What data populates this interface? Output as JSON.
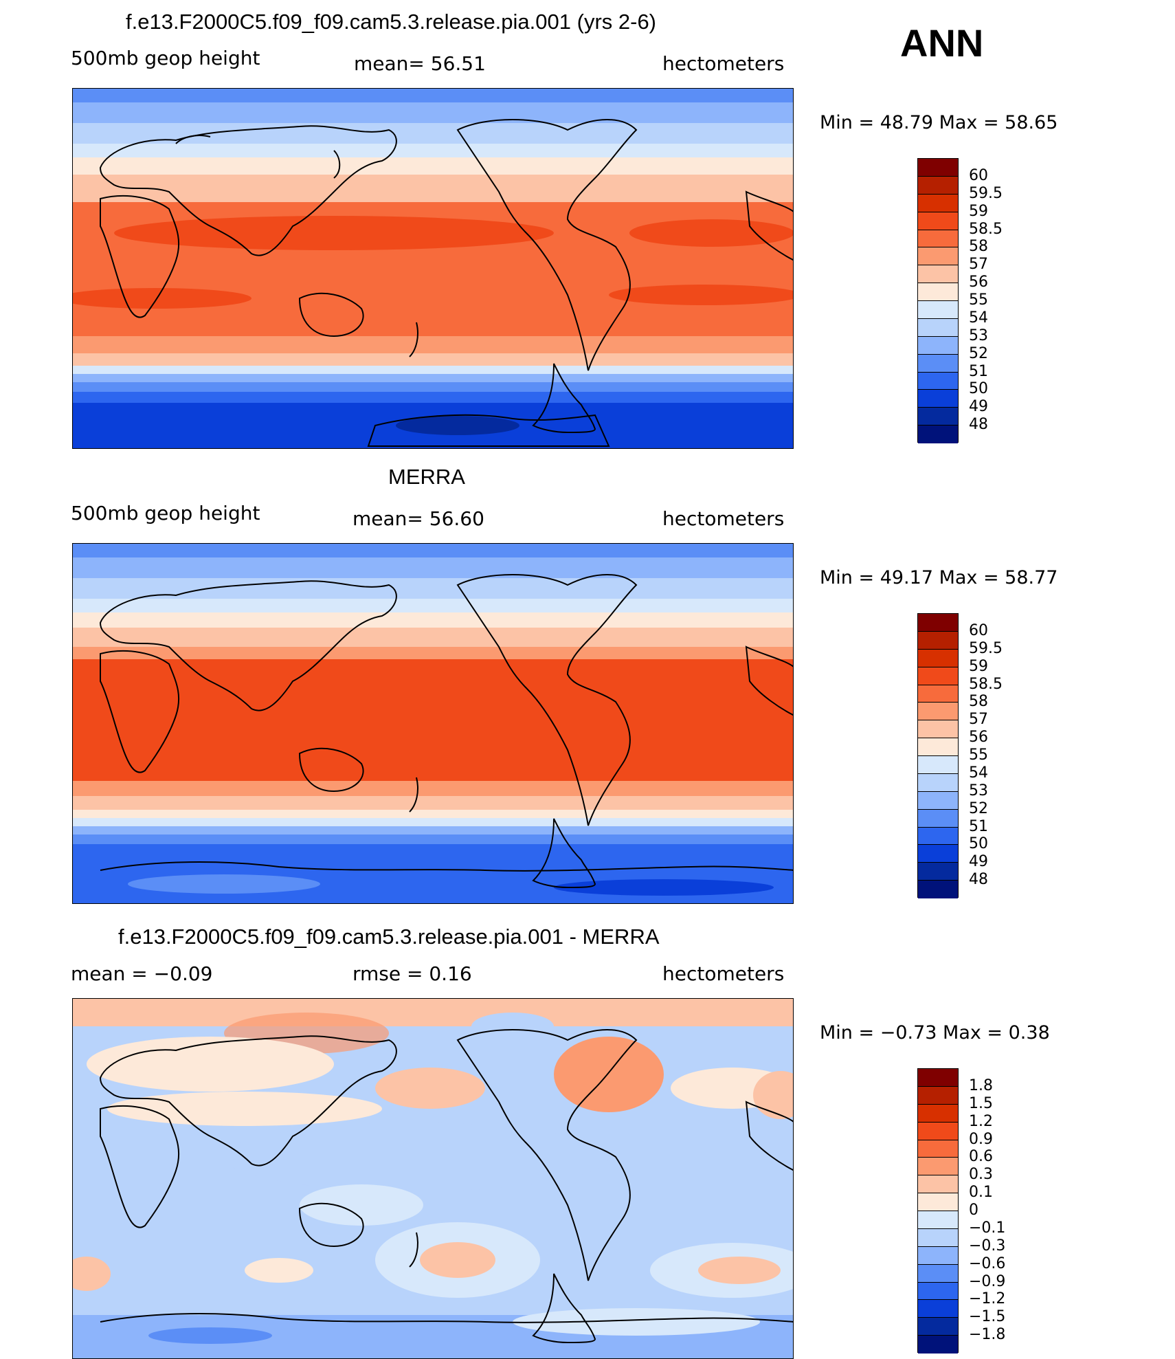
{
  "season_label": "ANN",
  "panels": [
    {
      "title": "f.e13.F2000C5.f09_f09.cam5.3.release.pia.001 (yrs 2-6)",
      "left_text": "500mb  geop  height",
      "center_text": "mean=   56.51",
      "right_text": "hectometers",
      "minmax": "Min  =    48.79  Max  =    58.65",
      "colorbar_labels": [
        "60",
        "59.5",
        "59",
        "58.5",
        "58",
        "57",
        "56",
        "55",
        "54",
        "53",
        "52",
        "51",
        "50",
        "49",
        "48"
      ],
      "colors": [
        "#7f0000",
        "#b52000",
        "#d73000",
        "#f04a1a",
        "#f76b3c",
        "#fb9a70",
        "#fcc3a6",
        "#fde9d9",
        "#d7e8fb",
        "#b8d3fb",
        "#8db4fb",
        "#5b8ef6",
        "#2d66ef",
        "#0a3fd9",
        "#042a9e",
        "#00127a"
      ]
    },
    {
      "title": "MERRA",
      "left_text": "500mb  geop  height",
      "center_text": "mean=   56.60",
      "right_text": "hectometers",
      "minmax": "Min  =    49.17  Max  =    58.77",
      "colorbar_labels": [
        "60",
        "59.5",
        "59",
        "58.5",
        "58",
        "57",
        "56",
        "55",
        "54",
        "53",
        "52",
        "51",
        "50",
        "49",
        "48"
      ],
      "colors": [
        "#7f0000",
        "#b52000",
        "#d73000",
        "#f04a1a",
        "#f76b3c",
        "#fb9a70",
        "#fcc3a6",
        "#fde9d9",
        "#d7e8fb",
        "#b8d3fb",
        "#8db4fb",
        "#5b8ef6",
        "#2d66ef",
        "#0a3fd9",
        "#042a9e",
        "#00127a"
      ]
    },
    {
      "title": "f.e13.F2000C5.f09_f09.cam5.3.release.pia.001 - MERRA",
      "left_text": "mean  =    −0.09",
      "center_text": "rmse  =     0.16",
      "right_text": "hectometers",
      "minmax": "Min  =    −0.73  Max  =     0.38",
      "colorbar_labels": [
        "1.8",
        "1.5",
        "1.2",
        "0.9",
        "0.6",
        "0.3",
        "0.1",
        "0",
        "−0.1",
        "−0.3",
        "−0.6",
        "−0.9",
        "−1.2",
        "−1.5",
        "−1.8"
      ],
      "colors": [
        "#7f0000",
        "#b52000",
        "#d73000",
        "#f04a1a",
        "#f76b3c",
        "#fb9a70",
        "#fcc3a6",
        "#fde9d9",
        "#d7e8fb",
        "#b8d3fb",
        "#8db4fb",
        "#5b8ef6",
        "#2d66ef",
        "#0a3fd9",
        "#042a9e",
        "#00127a"
      ]
    }
  ]
}
